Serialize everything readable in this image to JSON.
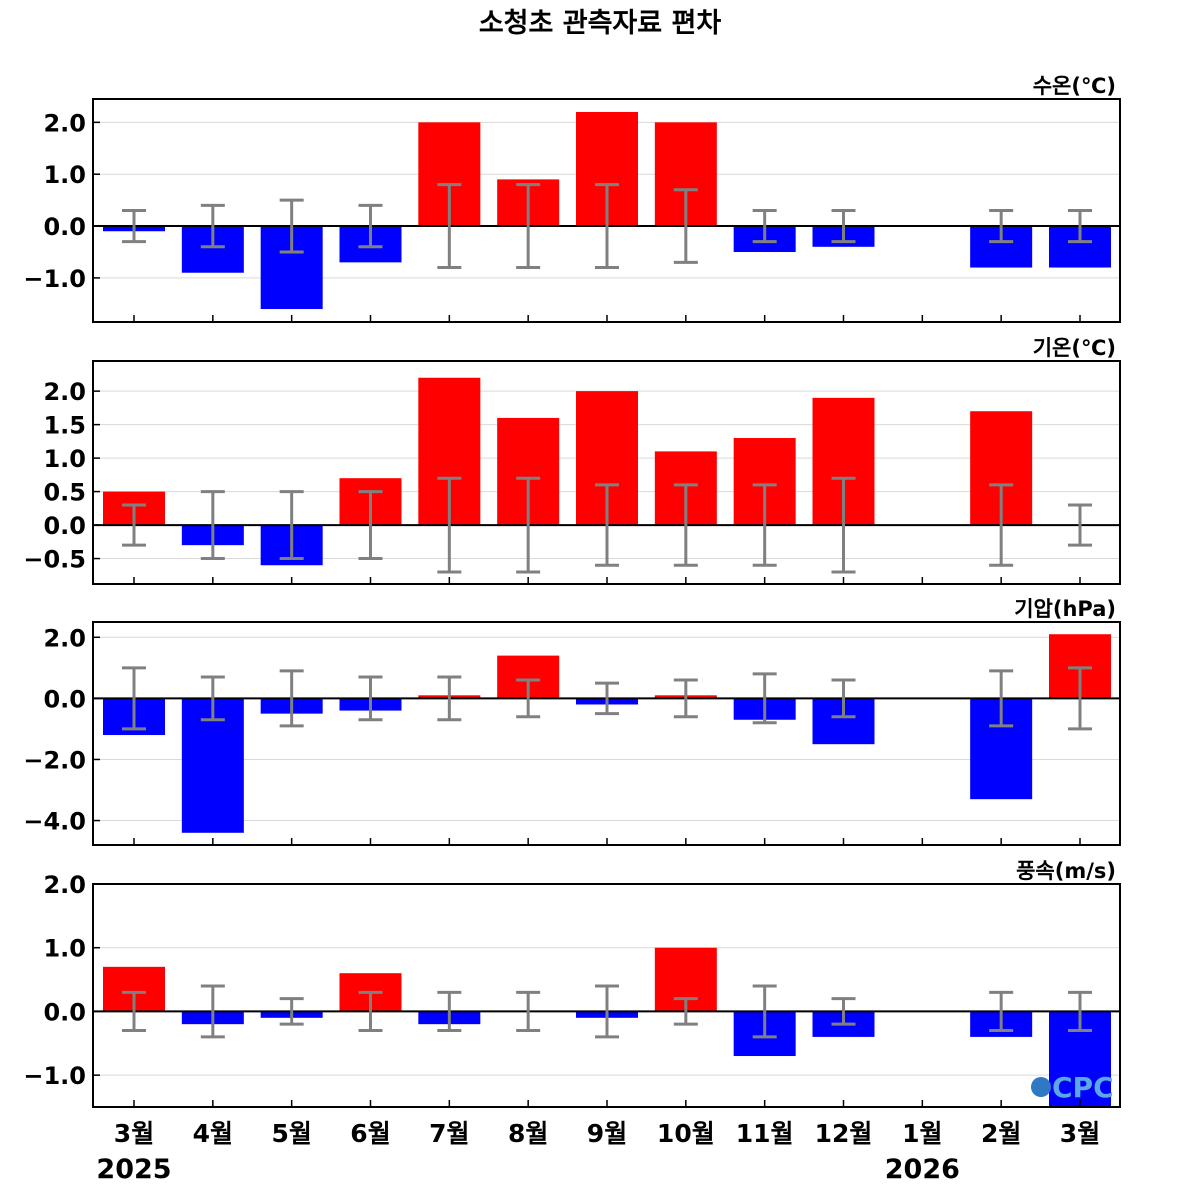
{
  "title": "소청초 관측자료 편차",
  "x_labels": [
    "3월",
    "4월",
    "5월",
    "6월",
    "7월",
    "8월",
    "9월",
    "10월",
    "11월",
    "12월",
    "1월",
    "2월",
    "3월"
  ],
  "year_labels": [
    {
      "text": "2025",
      "index": 0
    },
    {
      "text": "2026",
      "index": 10
    }
  ],
  "logo_text": "CPC",
  "colors": {
    "positive": "#ff0000",
    "negative": "#0000ff",
    "errorbar": "#808080",
    "zero_line": "#000000",
    "grid": "#d9d9d9"
  },
  "chart_data": [
    {
      "type": "bar",
      "label": "수온(℃)",
      "ylim": [
        -1.85,
        2.45
      ],
      "ticks": [
        2.0,
        1.0,
        0.0,
        -1.0
      ],
      "tick_labels": [
        "2.0",
        "1.0",
        "0.0",
        "−1.0"
      ],
      "values": [
        -0.1,
        -0.9,
        -1.6,
        -0.7,
        2.0,
        0.9,
        2.2,
        2.0,
        -0.5,
        -0.4,
        null,
        -0.8,
        -0.8
      ],
      "errors": [
        0.3,
        0.4,
        0.5,
        0.4,
        0.8,
        0.8,
        0.8,
        0.7,
        0.3,
        0.3,
        null,
        0.3,
        0.3
      ]
    },
    {
      "type": "bar",
      "label": "기온(℃)",
      "ylim": [
        -0.88,
        2.45
      ],
      "ticks": [
        2.0,
        1.5,
        1.0,
        0.5,
        0.0,
        -0.5
      ],
      "tick_labels": [
        "2.0",
        "1.5",
        "1.0",
        "0.5",
        "0.0",
        "−0.5"
      ],
      "values": [
        0.5,
        -0.3,
        -0.6,
        0.7,
        2.2,
        1.6,
        2.0,
        1.1,
        1.3,
        1.9,
        null,
        1.7,
        0.0
      ],
      "errors": [
        0.3,
        0.5,
        0.5,
        0.5,
        0.7,
        0.7,
        0.6,
        0.6,
        0.6,
        0.7,
        null,
        0.6,
        0.3
      ]
    },
    {
      "type": "bar",
      "label": "기압(hPa)",
      "ylim": [
        -4.8,
        2.5
      ],
      "ticks": [
        2.0,
        0.0,
        -2.0,
        -4.0
      ],
      "tick_labels": [
        "2.0",
        "0.0",
        "−2.0",
        "−4.0"
      ],
      "values": [
        -1.2,
        -4.4,
        -0.5,
        -0.4,
        0.1,
        1.4,
        -0.2,
        0.1,
        -0.7,
        -1.5,
        null,
        -3.3,
        2.1
      ],
      "errors": [
        1.0,
        0.7,
        0.9,
        0.7,
        0.7,
        0.6,
        0.5,
        0.6,
        0.8,
        0.6,
        null,
        0.9,
        1.0
      ]
    },
    {
      "type": "bar",
      "label": "풍속(m/s)",
      "ylim": [
        -1.5,
        2.0
      ],
      "ticks": [
        2.0,
        1.0,
        0.0,
        -1.0
      ],
      "tick_labels": [
        "2.0",
        "1.0",
        "0.0",
        "−1.0"
      ],
      "values": [
        0.7,
        -0.2,
        -0.1,
        0.6,
        -0.2,
        0.0,
        -0.1,
        1.0,
        -0.7,
        -0.4,
        null,
        -0.4,
        -1.5
      ],
      "errors": [
        0.3,
        0.4,
        0.2,
        0.3,
        0.3,
        0.3,
        0.4,
        0.2,
        0.4,
        0.2,
        null,
        0.3,
        0.3
      ]
    }
  ]
}
